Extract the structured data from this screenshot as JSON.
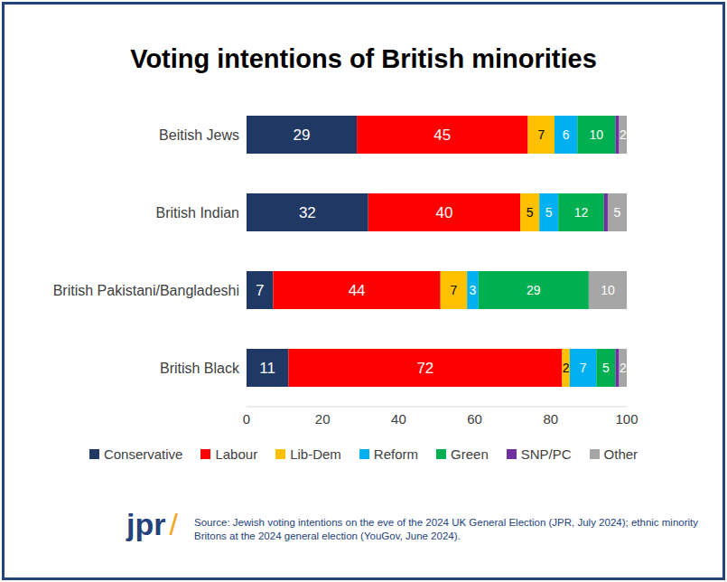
{
  "chart_data": {
    "type": "bar",
    "title": "Voting intentions of British minorities",
    "orientation": "horizontal",
    "stacked": true,
    "data_labels": true,
    "grid": false,
    "legend": "bottom",
    "categories": [
      "Beitish Jews",
      "British Indian",
      "British Pakistani/Bangladeshi",
      "British Black"
    ],
    "xlim": [
      0,
      100
    ],
    "xticks": [
      0,
      20,
      40,
      60,
      80,
      100
    ],
    "series": [
      {
        "name": "Conservative",
        "color": "#1f3864",
        "values": [
          29,
          32,
          7,
          11
        ]
      },
      {
        "name": "Labour",
        "color": "#ff0000",
        "values": [
          45,
          40,
          44,
          72
        ]
      },
      {
        "name": "Lib-Dem",
        "color": "#ffc000",
        "values": [
          7,
          5,
          7,
          2
        ]
      },
      {
        "name": "Reform",
        "color": "#00b0f0",
        "values": [
          6,
          5,
          3,
          7
        ]
      },
      {
        "name": "Green",
        "color": "#00b050",
        "values": [
          10,
          12,
          29,
          5
        ]
      },
      {
        "name": "SNP/PC",
        "color": "#7030a0",
        "values": [
          1,
          1,
          0,
          1
        ],
        "data_labels": false
      },
      {
        "name": "Other",
        "color": "#a6a6a6",
        "values": [
          2,
          5,
          10,
          2
        ]
      }
    ],
    "logo": "jpr /",
    "source": "Source: Jewish voting intentions on the eve of the 2024 UK General Election (JPR, July 2024); ethnic minority Britons at the 2024 general election (YouGov, June 2024)."
  }
}
